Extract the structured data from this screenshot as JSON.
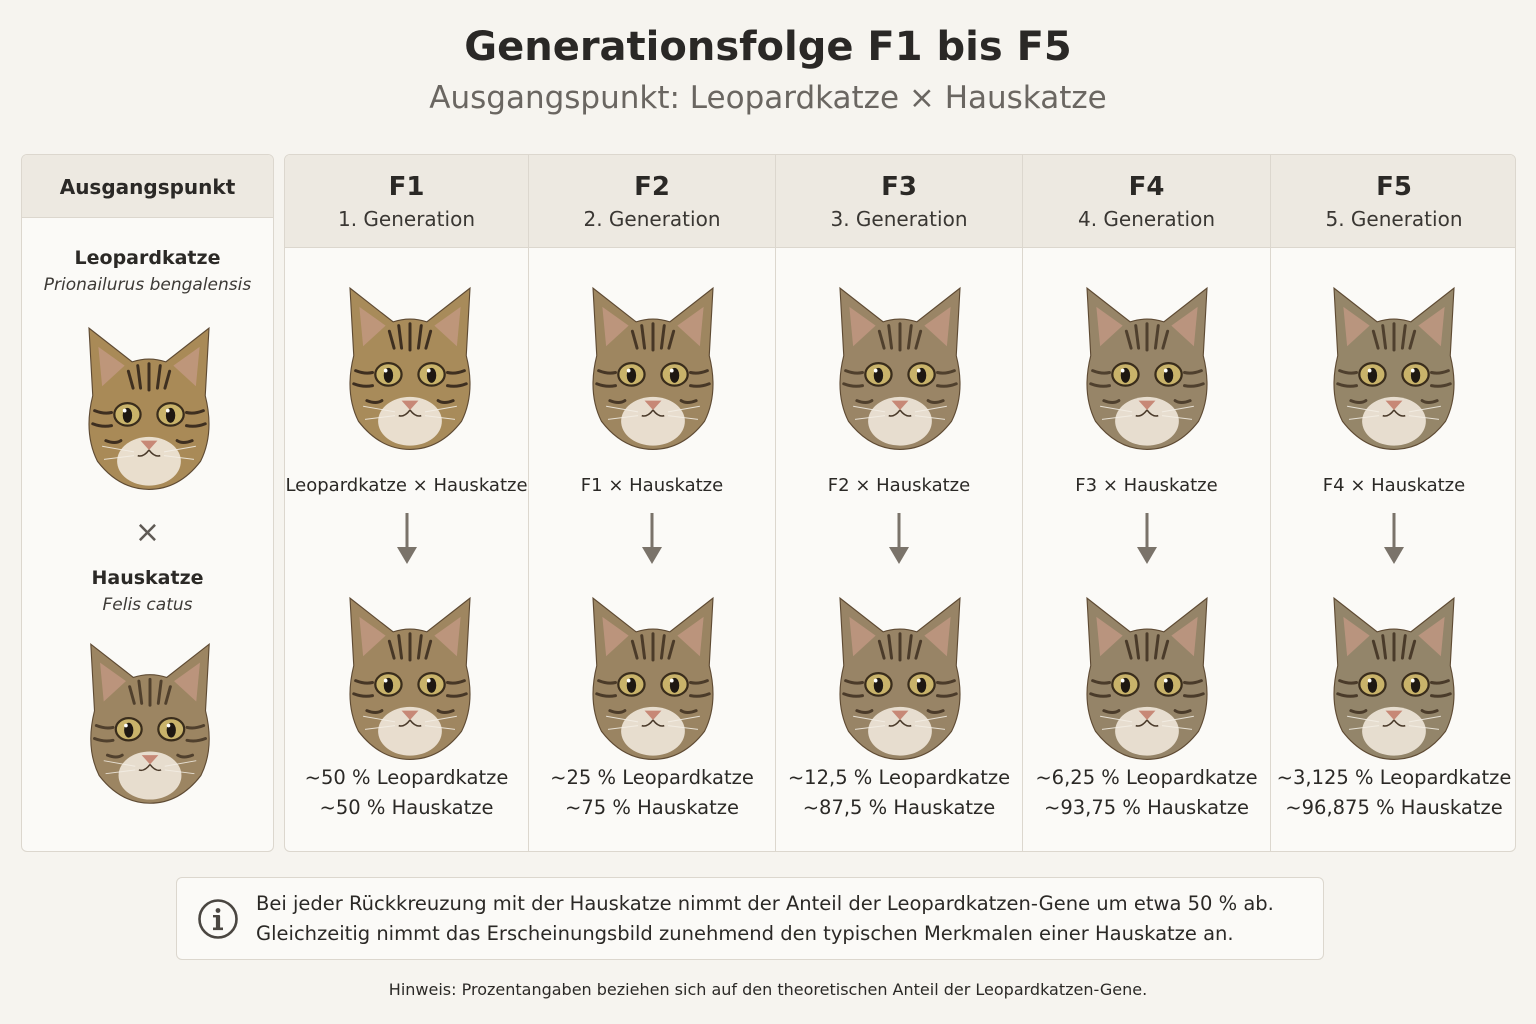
{
  "header": {
    "title": "Generationsfolge F1 bis F5",
    "subtitle": "Ausgangspunkt: Leopardkatze × Hauskatze"
  },
  "origin": {
    "heading": "Ausgangspunkt",
    "parent_a": {
      "name": "Leopardkatze",
      "latin": "Prionailurus bengalensis"
    },
    "cross_symbol": "×",
    "parent_b": {
      "name": "Hauskatze",
      "latin": "Felis catus"
    }
  },
  "generations": [
    {
      "code": "F1",
      "label": "1. Generation",
      "cross": "Leopardkatze × Hauskatze",
      "leopard_pct": "~50 % Leopardkatze",
      "house_pct": "~50 % Hauskatze"
    },
    {
      "code": "F2",
      "label": "2. Generation",
      "cross": "F1 × Hauskatze",
      "leopard_pct": "~25 % Leopardkatze",
      "house_pct": "~75 % Hauskatze"
    },
    {
      "code": "F3",
      "label": "3. Generation",
      "cross": "F2 × Hauskatze",
      "leopard_pct": "~12,5 % Leopardkatze",
      "house_pct": "~87,5 % Hauskatze"
    },
    {
      "code": "F4",
      "label": "4. Generation",
      "cross": "F3 × Hauskatze",
      "leopard_pct": "~6,25 % Leopardkatze",
      "house_pct": "~93,75 % Hauskatze"
    },
    {
      "code": "F5",
      "label": "5. Generation",
      "cross": "F4 × Hauskatze",
      "leopard_pct": "~3,125 % Leopardkatze",
      "house_pct": "~96,875 % Hauskatze"
    }
  ],
  "info": {
    "icon": "info-icon",
    "line1": "Bei jeder Rückkreuzung mit der Hauskatze nimmt der Anteil der Leopardkatzen-Gene um etwa 50 % ab.",
    "line2": "Gleichzeitig nimmt das Erscheinungsbild zunehmend den typischen Merkmalen einer Hauskatze an."
  },
  "footnote": "Hinweis: Prozentangaben beziehen sich auf den theoretischen Anteil der Leopardkatzen-Gene.",
  "colors": {
    "background": "#f6f4ef",
    "header_fill": "#ede9e1",
    "border": "#dcd7ce",
    "arrow": "#7a736a"
  }
}
